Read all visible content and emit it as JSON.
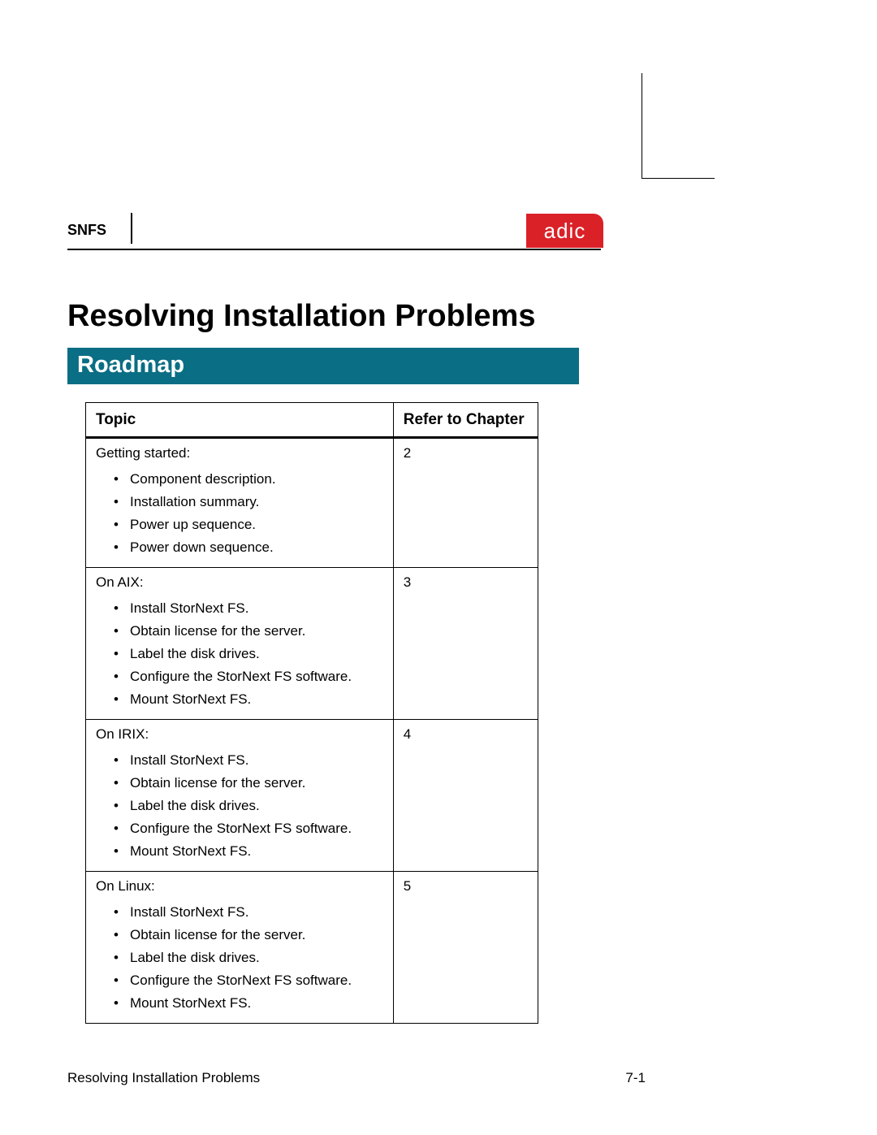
{
  "header": {
    "label": "SNFS",
    "logo_text": "adic",
    "logo_bg": "#da2128",
    "logo_fg": "#ffffff"
  },
  "title": "Resolving Installation Problems",
  "section": {
    "label": "Roadmap",
    "bg": "#0a6e84",
    "fg": "#ffffff"
  },
  "table": {
    "col_topic": "Topic",
    "col_chapter": "Refer to Chapter",
    "rows": [
      {
        "title": "Getting started:",
        "chapter": "2",
        "items": [
          "Component description.",
          "Installation summary.",
          "Power up sequence.",
          "Power down sequence."
        ]
      },
      {
        "title": "On AIX:",
        "chapter": "3",
        "items": [
          "Install StorNext FS.",
          "Obtain license for the server.",
          "Label the disk drives.",
          "Configure the StorNext FS software.",
          "Mount StorNext FS."
        ]
      },
      {
        "title": "On IRIX:",
        "chapter": "4",
        "items": [
          "Install StorNext FS.",
          "Obtain license for the server.",
          "Label the disk drives.",
          "Configure the StorNext FS software.",
          "Mount StorNext FS."
        ]
      },
      {
        "title": "On Linux:",
        "chapter": "5",
        "items": [
          "Install StorNext FS.",
          "Obtain license for the server.",
          "Label the disk drives.",
          "Configure the StorNext FS software.",
          "Mount StorNext FS."
        ]
      }
    ]
  },
  "footer": {
    "left": "Resolving Installation Problems",
    "right": "7-1"
  }
}
